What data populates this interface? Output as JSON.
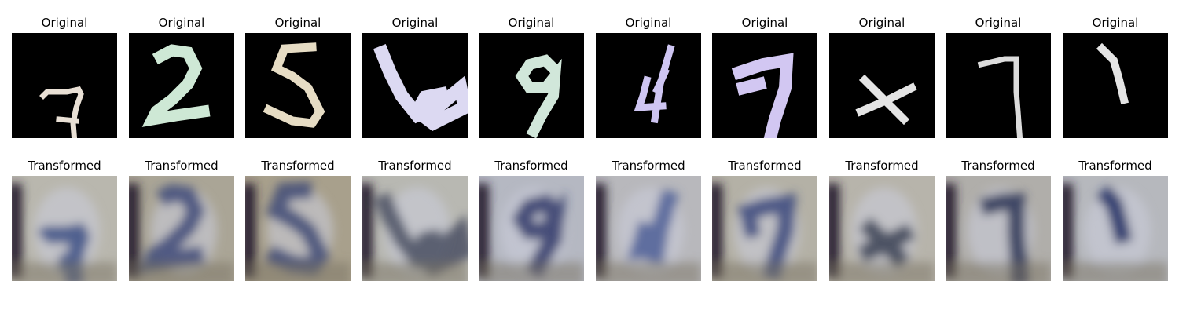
{
  "figure": {
    "original_title": "Original",
    "transformed_title": "Transformed",
    "originals": [
      {
        "digit": "7",
        "fill": "#f6ece0"
      },
      {
        "digit": "2",
        "fill": "#d9f4e0"
      },
      {
        "digit": "5",
        "fill": "#f2e8cf"
      },
      {
        "digit": "6",
        "fill": "#e8e5ff"
      },
      {
        "digit": "9",
        "fill": "#dcf3e6"
      },
      {
        "digit": "4",
        "fill": "#d9d0ff"
      },
      {
        "digit": "7",
        "fill": "#ddd2ff"
      },
      {
        "digit": "x",
        "fill": "#f0f0f0"
      },
      {
        "digit": "7",
        "fill": "#e8e8e8"
      },
      {
        "digit": "1",
        "fill": "#f0f0f0"
      }
    ],
    "transformed": [
      {
        "bg": "#b9b7ae",
        "ink": "#3c4f86"
      },
      {
        "bg": "#aaa596",
        "ink": "#3d4a79"
      },
      {
        "bg": "#a8a08c",
        "ink": "#3e4a74"
      },
      {
        "bg": "#b8b8b2",
        "ink": "#4a4f63"
      },
      {
        "bg": "#b5b8c2",
        "ink": "#303a6a"
      },
      {
        "bg": "#b8b8bc",
        "ink": "#4c5f98"
      },
      {
        "bg": "#b4b1a6",
        "ink": "#39487c"
      },
      {
        "bg": "#b7b4ab",
        "ink": "#3a3f55"
      },
      {
        "bg": "#b0aeaa",
        "ink": "#283055"
      },
      {
        "bg": "#b6b8bd",
        "ink": "#1d2a63"
      }
    ]
  }
}
